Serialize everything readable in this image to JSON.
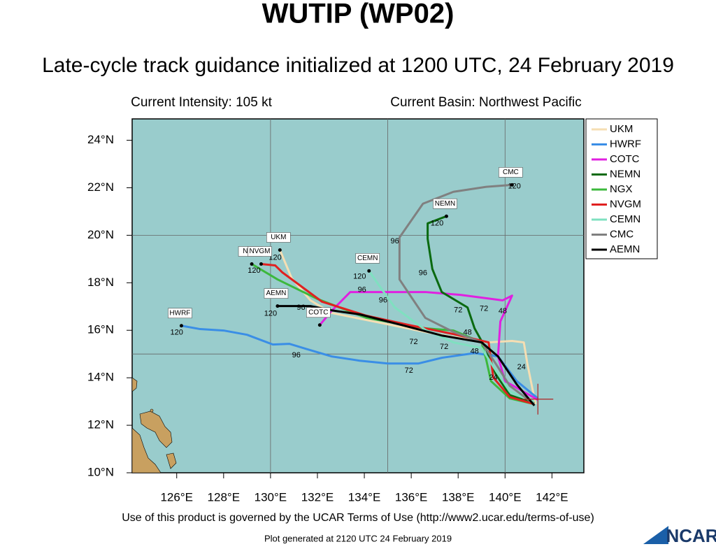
{
  "chart_data": {
    "type": "map",
    "title": "WUTIP (WP02)",
    "subtitle": "Late-cycle track guidance initialized at 1200 UTC, 24 February 2019",
    "intensity": "Current Intensity: 105 kt",
    "basin": "Current Basin: Northwest Pacific",
    "footer": "Use of this product is governed by the UCAR Terms of Use (http://www2.ucar.edu/terms-of-use)",
    "generated": "Plot generated at 2120 UTC   24 February 2019",
    "logo": "NCAR",
    "xlim": [
      124.1,
      143.36
    ],
    "ylim": [
      10,
      24.9
    ],
    "xticks": [
      {
        "value": 126,
        "label": "126°E"
      },
      {
        "value": 128,
        "label": "128°E"
      },
      {
        "value": 130,
        "label": "130°E"
      },
      {
        "value": 132,
        "label": "132°E"
      },
      {
        "value": 134,
        "label": "134°E"
      },
      {
        "value": 136,
        "label": "136°E"
      },
      {
        "value": 138,
        "label": "138°E"
      },
      {
        "value": 140,
        "label": "140°E"
      },
      {
        "value": 142,
        "label": "142°E"
      }
    ],
    "yticks": [
      {
        "value": 10,
        "label": "10°N"
      },
      {
        "value": 12,
        "label": "12°N"
      },
      {
        "value": 14,
        "label": "14°N"
      },
      {
        "value": 16,
        "label": "16°N"
      },
      {
        "value": 18,
        "label": "18°N"
      },
      {
        "value": 20,
        "label": "20°N"
      },
      {
        "value": 22,
        "label": "22°N"
      },
      {
        "value": 24,
        "label": "24°N"
      }
    ],
    "grid_x": [
      130,
      135,
      140
    ],
    "grid_y": [
      15,
      20
    ],
    "ocean_color": "#99cccc",
    "storm_position": [
      141.4,
      13.1
    ],
    "series": [
      {
        "name": "UKM",
        "color": "#f5deb3",
        "x": [
          141.3,
          140.95,
          140.8,
          140.3,
          139.3,
          137.8,
          136.6,
          134.7,
          132.6,
          131.7,
          130.9,
          130.4
        ],
        "y": [
          12.89,
          14.6,
          15.49,
          15.55,
          15.49,
          15.72,
          15.93,
          16.31,
          16.73,
          17.26,
          18.2,
          19.38
        ],
        "labels": [
          {
            "text": "120",
            "x": 130.2,
            "y": 19.05
          },
          {
            "text": "24",
            "x": 140.7,
            "y": 14.45
          }
        ]
      },
      {
        "name": "HWRF",
        "color": "#3a8ee6",
        "x": [
          141.4,
          140.5,
          139.7,
          138.7,
          137.3,
          136.3,
          135.0,
          133.8,
          132.6,
          131.5,
          130.8,
          130.1,
          129.0,
          128.0,
          127.0,
          126.2
        ],
        "y": [
          13.13,
          13.86,
          14.9,
          15.04,
          14.84,
          14.6,
          14.6,
          14.72,
          14.9,
          15.22,
          15.43,
          15.4,
          15.81,
          15.99,
          16.05,
          16.19
        ],
        "labels": [
          {
            "text": "120",
            "x": 126.0,
            "y": 15.9
          },
          {
            "text": "96",
            "x": 131.1,
            "y": 14.95
          },
          {
            "text": "72",
            "x": 135.9,
            "y": 14.3
          }
        ]
      },
      {
        "name": "COTC",
        "color": "#e020e0",
        "x": [
          141.4,
          140.0,
          139.7,
          139.8,
          140.3,
          139.9,
          138.1,
          136.6,
          135.2,
          133.4,
          132.6,
          132.1
        ],
        "y": [
          13.07,
          13.86,
          14.9,
          16.37,
          17.46,
          17.26,
          17.49,
          17.61,
          17.61,
          17.61,
          16.81,
          16.22
        ],
        "labels": [
          {
            "text": "96",
            "x": 134.8,
            "y": 17.25
          },
          {
            "text": "72",
            "x": 139.1,
            "y": 16.9
          },
          {
            "text": "48",
            "x": 139.9,
            "y": 16.8
          }
        ]
      },
      {
        "name": "NEMN",
        "color": "#0a6a10",
        "x": [
          141.25,
          140.2,
          139.6,
          139.2,
          138.7,
          138.4,
          137.3,
          136.9,
          136.7,
          136.7,
          137.5
        ],
        "y": [
          12.92,
          13.27,
          14.16,
          15.19,
          16.08,
          16.96,
          17.61,
          18.58,
          19.85,
          20.5,
          20.8
        ],
        "labels": [
          {
            "text": "120",
            "x": 137.1,
            "y": 20.5
          },
          {
            "text": "96",
            "x": 136.5,
            "y": 18.4
          },
          {
            "text": "72",
            "x": 138.0,
            "y": 16.85
          }
        ]
      },
      {
        "name": "NGX",
        "color": "#3cb83c",
        "x": [
          141.25,
          140.2,
          139.4,
          139.2,
          139.0,
          137.8,
          136.6,
          135.3,
          134.1,
          132.0,
          130.3,
          129.2
        ],
        "y": [
          12.89,
          13.13,
          13.86,
          14.75,
          15.49,
          15.99,
          16.08,
          16.31,
          16.52,
          17.32,
          18.14,
          18.79
        ],
        "labels": [
          {
            "text": "48",
            "x": 138.4,
            "y": 15.9
          }
        ]
      },
      {
        "name": "NVGM",
        "color": "#e02020",
        "x": [
          141.25,
          140.2,
          139.5,
          139.3,
          137.8,
          135.9,
          134.1,
          132.2,
          130.5,
          130.2,
          129.6
        ],
        "y": [
          12.89,
          13.19,
          14.01,
          15.49,
          15.84,
          16.22,
          16.61,
          17.2,
          18.44,
          18.73,
          18.79
        ],
        "labels": [
          {
            "text": "120",
            "x": 129.3,
            "y": 18.5
          }
        ]
      },
      {
        "name": "CEMN",
        "color": "#7fe0c0",
        "x": [
          141.25,
          140.2,
          139.6,
          139.0,
          137.8,
          136.6,
          135.3,
          134.7,
          134.2
        ],
        "y": [
          12.98,
          13.42,
          14.31,
          15.25,
          15.49,
          16.02,
          16.96,
          17.79,
          18.5
        ],
        "labels": [
          {
            "text": "120",
            "x": 133.8,
            "y": 18.25
          },
          {
            "text": "96",
            "x": 133.9,
            "y": 17.7
          },
          {
            "text": "72",
            "x": 137.4,
            "y": 15.3
          }
        ]
      },
      {
        "name": "CMC",
        "color": "#808080",
        "x": [
          141.25,
          140.2,
          139.6,
          139.0,
          137.8,
          136.6,
          135.9,
          135.5,
          135.5,
          136.5,
          137.8,
          139.2,
          140.3
        ],
        "y": [
          12.89,
          13.66,
          14.6,
          15.49,
          15.93,
          16.52,
          17.55,
          18.14,
          19.91,
          21.33,
          21.83,
          22.04,
          22.12
        ],
        "labels": [
          {
            "text": "120",
            "x": 140.4,
            "y": 22.05
          },
          {
            "text": "96",
            "x": 135.3,
            "y": 19.75
          }
        ]
      },
      {
        "name": "AEMN",
        "color": "#000000",
        "x": [
          141.25,
          140.5,
          139.7,
          139.0,
          137.3,
          135.6,
          133.8,
          132.6,
          131.7,
          130.3
        ],
        "y": [
          12.83,
          13.72,
          14.9,
          15.49,
          15.78,
          16.22,
          16.67,
          16.84,
          17.02,
          17.02
        ],
        "labels": [
          {
            "text": "120",
            "x": 130.0,
            "y": 16.7
          },
          {
            "text": "96",
            "x": 131.3,
            "y": 16.95
          },
          {
            "text": "72",
            "x": 136.1,
            "y": 15.5
          },
          {
            "text": "48",
            "x": 138.7,
            "y": 15.1
          },
          {
            "text": "24",
            "x": 139.5,
            "y": 14.0
          }
        ]
      }
    ]
  }
}
